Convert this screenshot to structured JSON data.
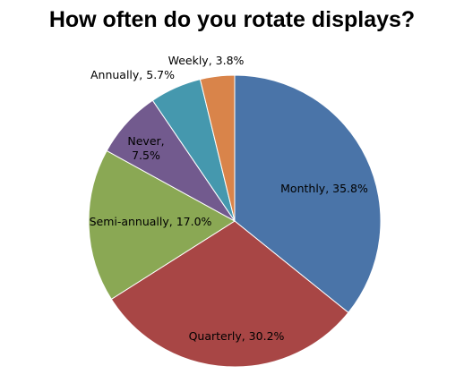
{
  "chart_data": {
    "type": "pie",
    "title": "How often do you rotate displays?",
    "slices": [
      {
        "label": "Monthly, 35.8%",
        "value": 35.8,
        "color": "#4a74a8"
      },
      {
        "label": "Quarterly, 30.2%",
        "value": 30.2,
        "color": "#a84645"
      },
      {
        "label": "Semi-annually, 17.0%",
        "value": 17.0,
        "color": "#8aa854"
      },
      {
        "label_lines": [
          "Never,",
          "7.5%"
        ],
        "value": 7.5,
        "color": "#725a8e"
      },
      {
        "label": "Annually, 5.7%",
        "value": 5.7,
        "color": "#4598ae"
      },
      {
        "label": "Weekly, 3.8%",
        "value": 3.8,
        "color": "#d9844a"
      }
    ],
    "legend": "none"
  }
}
